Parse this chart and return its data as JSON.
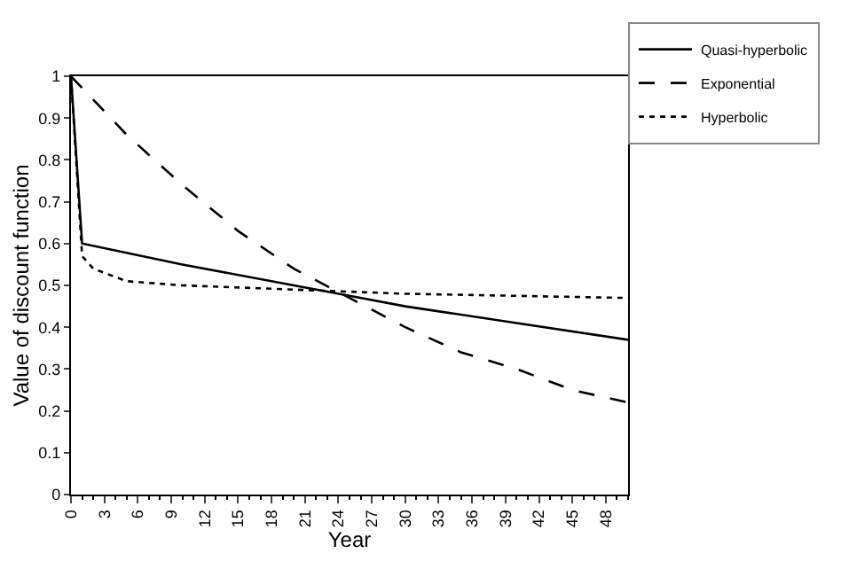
{
  "chart_data": {
    "type": "line",
    "xlabel": "Year",
    "ylabel": "Value of discount function",
    "xlim": [
      0,
      50
    ],
    "xticks": [
      0,
      3,
      6,
      9,
      12,
      15,
      18,
      21,
      24,
      27,
      30,
      33,
      36,
      39,
      42,
      45,
      48
    ],
    "ylim": [
      0,
      1
    ],
    "yticks": [
      0,
      0.1,
      0.2,
      0.3,
      0.4,
      0.5,
      0.6,
      0.7,
      0.8,
      0.9,
      1
    ],
    "legend": "top right",
    "marker": "none",
    "series": [
      {
        "name": "Quasi-hyperbolic",
        "color": "#000000",
        "line_style": "solid",
        "x": [
          0,
          1,
          10,
          20,
          25,
          30,
          40,
          50
        ],
        "values": [
          1,
          0.6,
          0.55,
          0.5,
          0.475,
          0.45,
          0.41,
          0.37
        ]
      },
      {
        "name": "Exponential",
        "color": "#000000",
        "line_style": "dashed",
        "x": [
          0,
          5,
          10,
          15,
          20,
          25,
          30,
          35,
          40,
          45,
          50
        ],
        "values": [
          1,
          0.86,
          0.74,
          0.63,
          0.54,
          0.47,
          0.4,
          0.34,
          0.3,
          0.25,
          0.22
        ]
      },
      {
        "name": "Hyperbolic",
        "color": "#000000",
        "line_style": "dotted",
        "x": [
          0,
          1,
          2,
          5,
          10,
          20,
          30,
          40,
          50
        ],
        "values": [
          1,
          0.57,
          0.54,
          0.51,
          0.5,
          0.49,
          0.48,
          0.475,
          0.47
        ]
      }
    ]
  }
}
